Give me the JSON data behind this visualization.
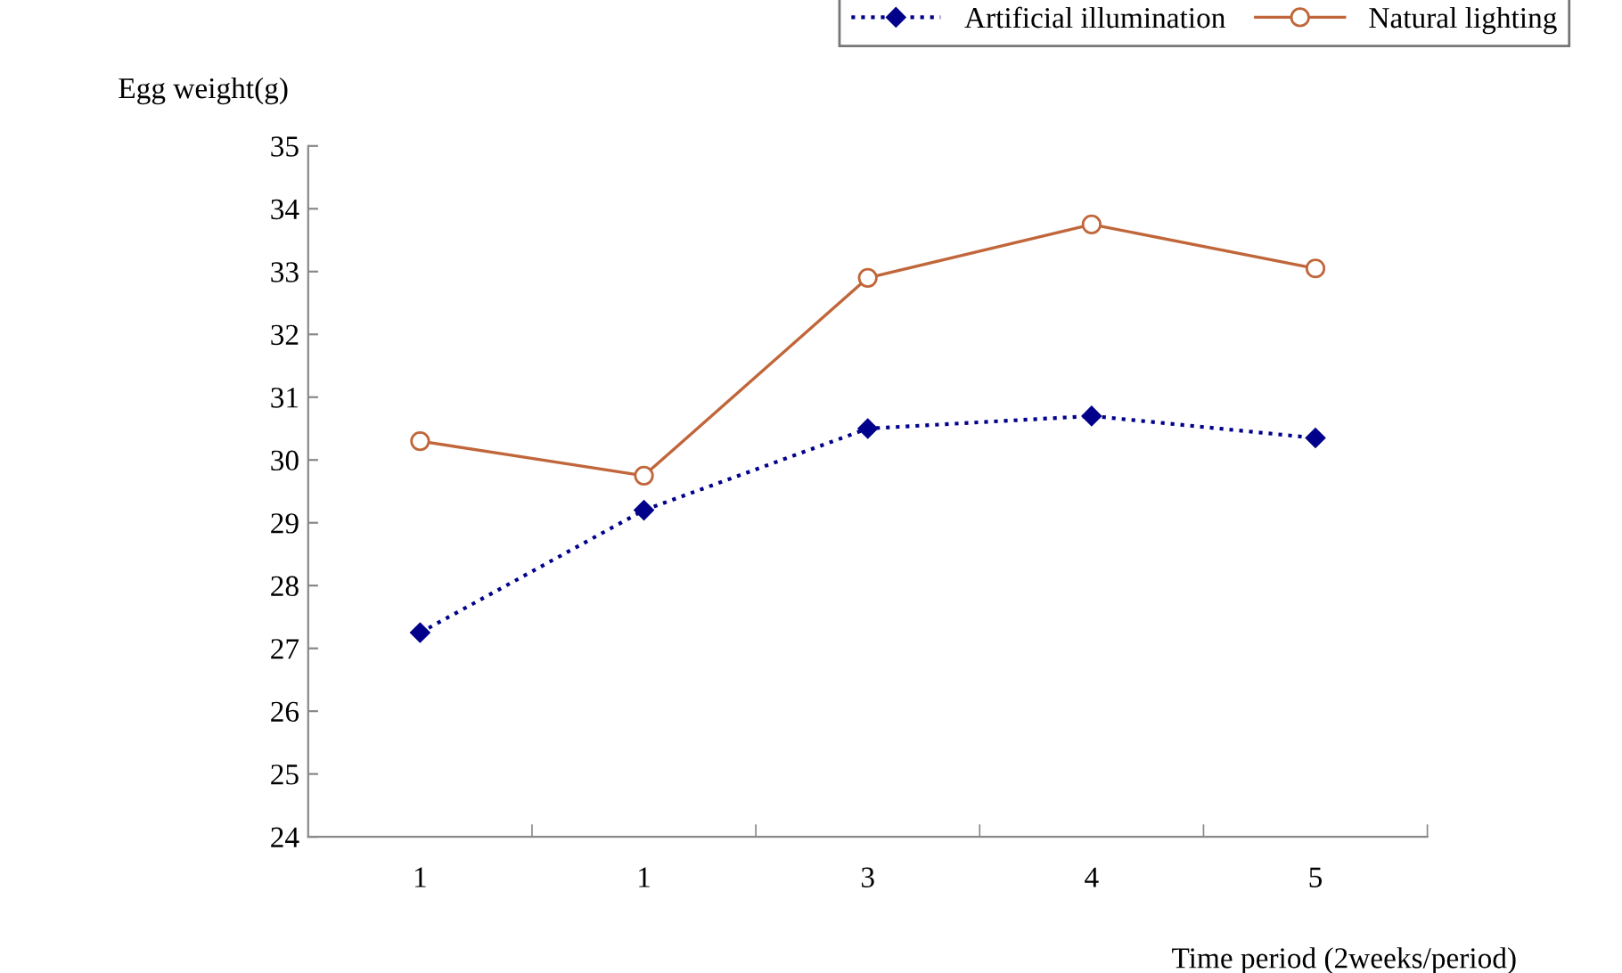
{
  "chart_data": {
    "type": "line",
    "xlabel": "Time period (2weeks/period)",
    "ylabel": "Egg weight(g)",
    "categories": [
      "1",
      "1",
      "3",
      "4",
      "5"
    ],
    "series": [
      {
        "name": "Artificial illumination",
        "color": "#00008b",
        "marker": "diamond",
        "line_style": "dotted",
        "values": [
          27.25,
          29.2,
          30.5,
          30.7,
          30.35
        ]
      },
      {
        "name": "Natural lighting",
        "color": "#c0663a",
        "marker": "circle",
        "line_style": "solid",
        "values": [
          30.3,
          29.75,
          32.9,
          33.75,
          33.05
        ]
      }
    ],
    "ylim": [
      24,
      35
    ],
    "yticks": [
      24,
      25,
      26,
      27,
      28,
      29,
      30,
      31,
      32,
      33,
      34,
      35
    ],
    "grid": false,
    "legend": "top right"
  }
}
